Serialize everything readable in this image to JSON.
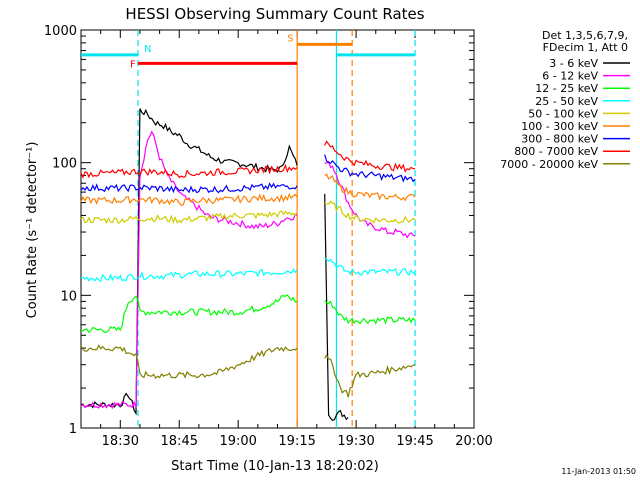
{
  "chart_data": {
    "type": "line",
    "title": "HESSI Observing Summary Count Rates",
    "xlabel": "Start Time (10-Jan-13 18:20:02)",
    "ylabel": "Count Rate (s⁻¹ detector⁻¹)",
    "yscale": "log",
    "x_unit": "minutes since 18:20",
    "xlim": [
      0,
      100
    ],
    "ylim": [
      1,
      1000
    ],
    "x_ticks": [
      {
        "value": 10,
        "label": "18:30"
      },
      {
        "value": 25,
        "label": "18:45"
      },
      {
        "value": 40,
        "label": "19:00"
      },
      {
        "value": 55,
        "label": "19:15"
      },
      {
        "value": 70,
        "label": "19:30"
      },
      {
        "value": 85,
        "label": "19:45"
      },
      {
        "value": 100,
        "label": "20:00"
      }
    ],
    "y_ticks": [
      {
        "value": 1,
        "label": "1"
      },
      {
        "value": 10,
        "label": "10"
      },
      {
        "value": 100,
        "label": "100"
      },
      {
        "value": 1000,
        "label": "1000"
      }
    ],
    "legend_header": [
      "Det 1,3,5,6,7,9,",
      "FDecim 1, Att 0"
    ],
    "legend_placement": "right",
    "footer_timestamp": "11-Jan-2013 01:50",
    "flags": [
      {
        "label": "N",
        "color": "#00e5ee",
        "y": 650,
        "segments": [
          [
            0,
            14.5
          ],
          [
            65,
            85
          ]
        ]
      },
      {
        "label": "F",
        "color": "#ff0000",
        "y": 560,
        "segments": [
          [
            14.5,
            55
          ]
        ]
      },
      {
        "label": "S",
        "color": "#ff7f00",
        "y": 780,
        "segments": [
          [
            55,
            69
          ]
        ]
      }
    ],
    "vlines": [
      {
        "x": 14.5,
        "color": "#00e5ee",
        "dashed": true
      },
      {
        "x": 55,
        "color": "#ff7f00",
        "dashed": false
      },
      {
        "x": 69,
        "color": "#ff7f00",
        "dashed": true
      },
      {
        "x": 65,
        "color": "#00e5ee",
        "dashed": false
      },
      {
        "x": 85,
        "color": "#00e5ee",
        "dashed": true
      }
    ],
    "series": [
      {
        "name": "3 - 6 keV",
        "color": "#000000",
        "segments": [
          [
            [
              0,
              1.5
            ],
            [
              10,
              1.5
            ],
            [
              12,
              1.8
            ],
            [
              14,
              1.3
            ],
            [
              15,
              250
            ],
            [
              17,
              230
            ],
            [
              19,
              200
            ],
            [
              21,
              190
            ],
            [
              23,
              170
            ],
            [
              25,
              160
            ],
            [
              27,
              140
            ],
            [
              29,
              130
            ],
            [
              31,
              120
            ],
            [
              33,
              110
            ],
            [
              35,
              105
            ],
            [
              37,
              100
            ],
            [
              39,
              100
            ],
            [
              41,
              98
            ],
            [
              43,
              95
            ],
            [
              45,
              92
            ],
            [
              47,
              90
            ],
            [
              49,
              88
            ],
            [
              51,
              90
            ],
            [
              52,
              110
            ],
            [
              53,
              130
            ],
            [
              55,
              95
            ]
          ],
          [
            [
              62,
              60
            ],
            [
              63,
              1.3
            ],
            [
              64,
              1.2
            ],
            [
              66,
              1.3
            ],
            [
              68,
              1.2
            ]
          ]
        ]
      },
      {
        "name": "6 - 12 keV",
        "color": "#ff00ff",
        "segments": [
          [
            [
              0,
              1.5
            ],
            [
              14,
              1.5
            ],
            [
              15,
              80
            ],
            [
              16,
              110
            ],
            [
              17,
              150
            ],
            [
              18,
              170
            ],
            [
              19,
              140
            ],
            [
              20,
              110
            ],
            [
              22,
              80
            ],
            [
              24,
              65
            ],
            [
              26,
              55
            ],
            [
              28,
              50
            ],
            [
              30,
              45
            ],
            [
              32,
              40
            ],
            [
              34,
              38
            ],
            [
              36,
              37
            ],
            [
              38,
              36
            ],
            [
              40,
              35
            ],
            [
              42,
              34
            ],
            [
              44,
              33
            ],
            [
              46,
              33
            ],
            [
              48,
              34
            ],
            [
              50,
              35
            ],
            [
              52,
              38
            ],
            [
              55,
              40
            ]
          ],
          [
            [
              62,
              100
            ],
            [
              64,
              95
            ],
            [
              66,
              70
            ],
            [
              68,
              50
            ],
            [
              70,
              40
            ],
            [
              72,
              35
            ],
            [
              74,
              33
            ],
            [
              76,
              32
            ],
            [
              78,
              30
            ],
            [
              80,
              30
            ],
            [
              82,
              29
            ],
            [
              84,
              28
            ],
            [
              85,
              28
            ]
          ]
        ]
      },
      {
        "name": "12 - 25 keV",
        "color": "#00ff00",
        "segments": [
          [
            [
              0,
              5.5
            ],
            [
              10,
              5.5
            ],
            [
              12,
              9
            ],
            [
              14,
              10
            ],
            [
              15,
              7.5
            ],
            [
              20,
              7.5
            ],
            [
              25,
              7.5
            ],
            [
              30,
              7.5
            ],
            [
              35,
              7.5
            ],
            [
              40,
              7.5
            ],
            [
              45,
              8
            ],
            [
              50,
              9
            ],
            [
              52,
              10
            ],
            [
              55,
              9
            ]
          ],
          [
            [
              62,
              9
            ],
            [
              64,
              8.5
            ],
            [
              66,
              7
            ],
            [
              68,
              6.5
            ],
            [
              70,
              6.5
            ],
            [
              75,
              6.5
            ],
            [
              80,
              6.5
            ],
            [
              85,
              6.5
            ]
          ]
        ]
      },
      {
        "name": "25 - 50 keV",
        "color": "#00ffff",
        "segments": [
          [
            [
              0,
              13.5
            ],
            [
              10,
              13.5
            ],
            [
              14,
              14
            ],
            [
              20,
              14
            ],
            [
              30,
              14.5
            ],
            [
              40,
              14.5
            ],
            [
              50,
              15
            ],
            [
              55,
              15.5
            ]
          ],
          [
            [
              62,
              20
            ],
            [
              64,
              18
            ],
            [
              66,
              16
            ],
            [
              68,
              15
            ],
            [
              75,
              15
            ],
            [
              85,
              15
            ]
          ]
        ]
      },
      {
        "name": "50 - 100 keV",
        "color": "#cccc00",
        "segments": [
          [
            [
              0,
              37
            ],
            [
              10,
              37
            ],
            [
              14,
              38
            ],
            [
              20,
              38
            ],
            [
              25,
              37
            ],
            [
              30,
              38
            ],
            [
              35,
              39
            ],
            [
              40,
              40
            ],
            [
              45,
              40
            ],
            [
              50,
              41
            ],
            [
              55,
              42
            ]
          ],
          [
            [
              62,
              50
            ],
            [
              64,
              48
            ],
            [
              66,
              44
            ],
            [
              68,
              40
            ],
            [
              70,
              38
            ],
            [
              75,
              37
            ],
            [
              80,
              37
            ],
            [
              85,
              37
            ]
          ]
        ]
      },
      {
        "name": "100 - 300 keV",
        "color": "#ff8000",
        "segments": [
          [
            [
              0,
              52
            ],
            [
              10,
              52
            ],
            [
              14,
              53
            ],
            [
              20,
              52
            ],
            [
              25,
              50
            ],
            [
              30,
              52
            ],
            [
              35,
              52
            ],
            [
              40,
              53
            ],
            [
              45,
              54
            ],
            [
              50,
              54
            ],
            [
              55,
              55
            ]
          ],
          [
            [
              62,
              80
            ],
            [
              64,
              75
            ],
            [
              66,
              65
            ],
            [
              68,
              60
            ],
            [
              70,
              58
            ],
            [
              75,
              56
            ],
            [
              80,
              55
            ],
            [
              85,
              55
            ]
          ]
        ]
      },
      {
        "name": "300 - 800 keV",
        "color": "#0000ff",
        "segments": [
          [
            [
              0,
              65
            ],
            [
              10,
              64
            ],
            [
              14,
              65
            ],
            [
              20,
              64
            ],
            [
              25,
              62
            ],
            [
              30,
              63
            ],
            [
              35,
              63
            ],
            [
              40,
              64
            ],
            [
              45,
              65
            ],
            [
              50,
              66
            ],
            [
              55,
              67
            ]
          ],
          [
            [
              62,
              110
            ],
            [
              64,
              100
            ],
            [
              66,
              90
            ],
            [
              68,
              85
            ],
            [
              70,
              82
            ],
            [
              75,
              80
            ],
            [
              80,
              77
            ],
            [
              85,
              75
            ]
          ]
        ]
      },
      {
        "name": "800 - 7000 keV",
        "color": "#ff0000",
        "segments": [
          [
            [
              0,
              82
            ],
            [
              10,
              84
            ],
            [
              14,
              86
            ],
            [
              20,
              85
            ],
            [
              25,
              82
            ],
            [
              30,
              83
            ],
            [
              35,
              85
            ],
            [
              40,
              86
            ],
            [
              45,
              88
            ],
            [
              50,
              90
            ],
            [
              55,
              92
            ]
          ],
          [
            [
              62,
              140
            ],
            [
              64,
              130
            ],
            [
              66,
              115
            ],
            [
              68,
              105
            ],
            [
              70,
              100
            ],
            [
              75,
              95
            ],
            [
              80,
              92
            ],
            [
              85,
              90
            ]
          ]
        ]
      },
      {
        "name": "7000 - 20000 keV",
        "color": "#808000",
        "segments": [
          [
            [
              0,
              4
            ],
            [
              10,
              4
            ],
            [
              14,
              3.5
            ],
            [
              15,
              2.5
            ],
            [
              20,
              2.5
            ],
            [
              25,
              2.5
            ],
            [
              30,
              2.5
            ],
            [
              35,
              2.6
            ],
            [
              40,
              3
            ],
            [
              45,
              3.5
            ],
            [
              50,
              4
            ],
            [
              55,
              4
            ]
          ],
          [
            [
              62,
              3.5
            ],
            [
              64,
              3
            ],
            [
              66,
              2
            ],
            [
              68,
              1.8
            ],
            [
              70,
              2.5
            ],
            [
              75,
              2.6
            ],
            [
              80,
              2.8
            ],
            [
              85,
              3
            ]
          ]
        ]
      }
    ]
  }
}
